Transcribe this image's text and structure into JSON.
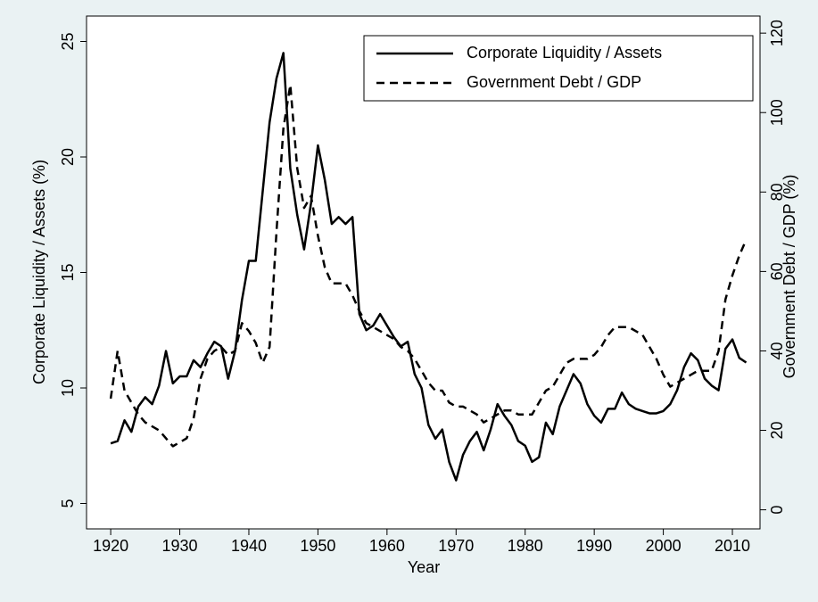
{
  "chart_data": {
    "type": "line",
    "x_label": "Year",
    "y_label": "Corporate Liquidity / Assets (%)",
    "y2_label": "Government Debt / GDP (%)",
    "x": [
      1920,
      1921,
      1922,
      1923,
      1924,
      1925,
      1926,
      1927,
      1928,
      1929,
      1930,
      1931,
      1932,
      1933,
      1934,
      1935,
      1936,
      1937,
      1938,
      1939,
      1940,
      1941,
      1942,
      1943,
      1944,
      1945,
      1946,
      1947,
      1948,
      1949,
      1950,
      1951,
      1952,
      1953,
      1954,
      1955,
      1956,
      1957,
      1958,
      1959,
      1960,
      1961,
      1962,
      1963,
      1964,
      1965,
      1966,
      1967,
      1968,
      1969,
      1970,
      1971,
      1972,
      1973,
      1974,
      1975,
      1976,
      1977,
      1978,
      1979,
      1980,
      1981,
      1982,
      1983,
      1984,
      1985,
      1986,
      1987,
      1988,
      1989,
      1990,
      1991,
      1992,
      1993,
      1994,
      1995,
      1996,
      1997,
      1998,
      1999,
      2000,
      2001,
      2002,
      2003,
      2004,
      2005,
      2006,
      2007,
      2008,
      2009,
      2010,
      2011,
      2012
    ],
    "series": [
      {
        "name": "Corporate Liquidity / Assets",
        "color": "#000000",
        "dash": "solid",
        "axis": "y",
        "values": [
          7.6,
          7.7,
          8.6,
          8.1,
          9.2,
          9.6,
          9.3,
          10.1,
          11.6,
          10.2,
          10.5,
          10.5,
          11.2,
          10.9,
          11.5,
          12.0,
          11.8,
          10.4,
          11.6,
          13.8,
          15.5,
          15.5,
          18.5,
          21.5,
          23.4,
          24.5,
          19.5,
          17.5,
          16.0,
          18.0,
          20.5,
          19.0,
          17.1,
          17.4,
          17.1,
          17.4,
          13.2,
          12.5,
          12.7,
          13.2,
          12.7,
          12.2,
          11.8,
          12.0,
          10.6,
          10.0,
          8.4,
          7.8,
          8.2,
          6.8,
          6.0,
          7.1,
          7.7,
          8.1,
          7.3,
          8.2,
          9.3,
          8.8,
          8.4,
          7.7,
          7.5,
          6.8,
          7.0,
          8.5,
          8.0,
          9.2,
          9.9,
          10.6,
          10.2,
          9.3,
          8.8,
          8.5,
          9.1,
          9.1,
          9.8,
          9.3,
          9.1,
          9.0,
          8.9,
          8.9,
          9.0,
          9.3,
          9.9,
          10.9,
          11.5,
          11.2,
          10.4,
          10.1,
          9.9,
          11.7,
          12.1,
          11.3,
          11.1
        ]
      },
      {
        "name": "Government Debt / GDP",
        "color": "#000000",
        "dash": "dashed",
        "axis": "y2",
        "values": [
          28,
          40,
          30,
          27,
          24,
          22,
          21,
          20,
          18,
          16,
          17,
          18,
          23,
          33,
          38,
          40,
          41,
          39,
          40,
          47,
          45,
          42,
          37,
          41,
          70,
          96,
          107,
          86,
          76,
          79,
          69,
          61,
          57,
          57,
          57,
          54,
          50,
          47,
          46,
          45,
          44,
          43,
          41,
          40,
          38,
          35,
          32,
          30,
          30,
          27,
          26,
          26,
          25,
          24,
          22,
          23,
          24,
          25,
          25,
          24,
          24,
          24,
          27,
          30,
          31,
          34,
          37,
          38,
          38,
          38,
          39,
          41,
          44,
          46,
          46,
          46,
          45,
          44,
          41,
          38,
          34,
          31,
          32,
          33,
          34,
          35,
          35,
          35,
          40,
          53,
          59,
          64,
          68
        ]
      }
    ],
    "xlim": [
      1916.5,
      2014
    ],
    "xticks": [
      1920,
      1930,
      1940,
      1950,
      1960,
      1970,
      1980,
      1990,
      2000,
      2010
    ],
    "ylim": [
      3.9,
      26.1
    ],
    "yticks": [
      5,
      10,
      15,
      20,
      25
    ],
    "y2lim": [
      -4.8,
      124.3
    ],
    "y2ticks": [
      0,
      20,
      40,
      60,
      80,
      100,
      120
    ],
    "legend": "top-right"
  }
}
